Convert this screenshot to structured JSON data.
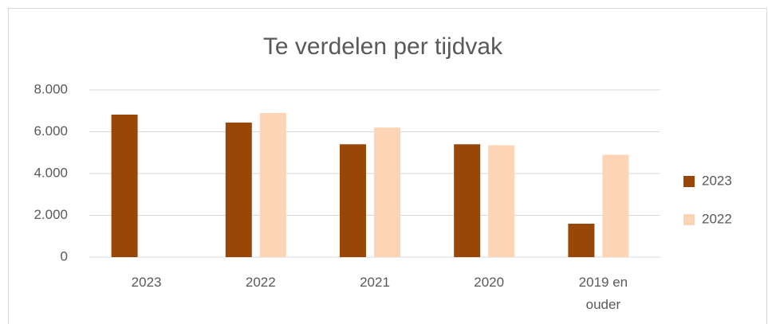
{
  "chart_data": {
    "type": "bar",
    "title": "Te verdelen per tijdvak",
    "categories": [
      "2023",
      "2022",
      "2021",
      "2020",
      "2019 en ouder"
    ],
    "series": [
      {
        "name": "2023",
        "color": "#994706",
        "values": [
          6820,
          6440,
          5400,
          5400,
          1600
        ]
      },
      {
        "name": "2022",
        "color": "#fbd5b5",
        "values": [
          null,
          6900,
          6200,
          5350,
          4900
        ]
      }
    ],
    "ylim": [
      0,
      8000
    ],
    "yticks": [
      {
        "value": 0,
        "label": "0"
      },
      {
        "value": 2000,
        "label": "2.000"
      },
      {
        "value": 4000,
        "label": "4.000"
      },
      {
        "value": 6000,
        "label": "6.000"
      },
      {
        "value": 8000,
        "label": "8.000"
      }
    ],
    "grid": true,
    "legend": "right"
  }
}
